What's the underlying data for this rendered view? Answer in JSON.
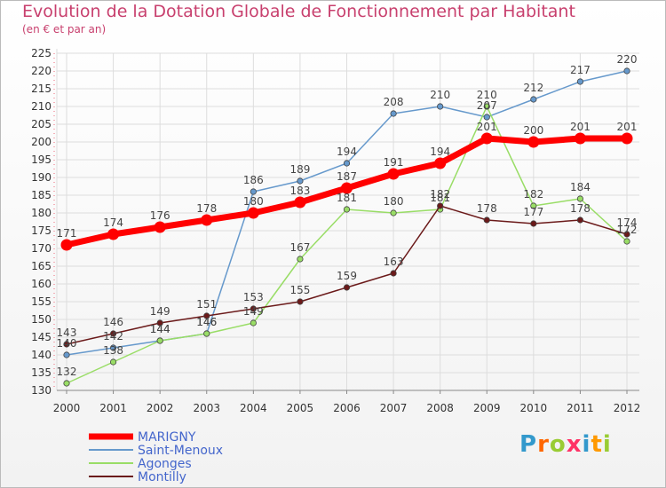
{
  "chart_data": {
    "type": "line",
    "title": "Evolution de la Dotation Globale de Fonctionnement par Habitant",
    "subtitle": "(en € et par an)",
    "x": [
      "2000",
      "2001",
      "2002",
      "2003",
      "2004",
      "2005",
      "2006",
      "2007",
      "2008",
      "2009",
      "2010",
      "2011",
      "2012"
    ],
    "ylim": [
      130,
      225
    ],
    "yticks": [
      130,
      135,
      140,
      145,
      150,
      155,
      160,
      165,
      170,
      175,
      180,
      185,
      190,
      195,
      200,
      205,
      210,
      215,
      220,
      225
    ],
    "grid": true,
    "legend_position": "bottom-left",
    "series": [
      {
        "name": "MARIGNY",
        "color": "#ff0000",
        "values": [
          171,
          174,
          176,
          178,
          180,
          183,
          187,
          191,
          194,
          201,
          200,
          201,
          201
        ]
      },
      {
        "name": "Saint-Menoux",
        "color": "#6699cc",
        "values": [
          140,
          142,
          144,
          146,
          186,
          189,
          194,
          208,
          210,
          207,
          212,
          217,
          220
        ]
      },
      {
        "name": "Agonges",
        "color": "#99dd66",
        "values": [
          132,
          138,
          144,
          146,
          149,
          167,
          181,
          180,
          181,
          210,
          182,
          184,
          172
        ]
      },
      {
        "name": "Montilly",
        "color": "#6b1a1a",
        "values": [
          143,
          146,
          149,
          151,
          153,
          155,
          159,
          163,
          182,
          178,
          177,
          178,
          174
        ]
      }
    ]
  },
  "logo": {
    "letters": [
      "P",
      "r",
      "o",
      "x",
      "i",
      "t",
      "i"
    ],
    "colors": [
      "#3399cc",
      "#ff6600",
      "#99cc33",
      "#ff3366",
      "#3399cc",
      "#ff9900",
      "#99cc33"
    ]
  }
}
